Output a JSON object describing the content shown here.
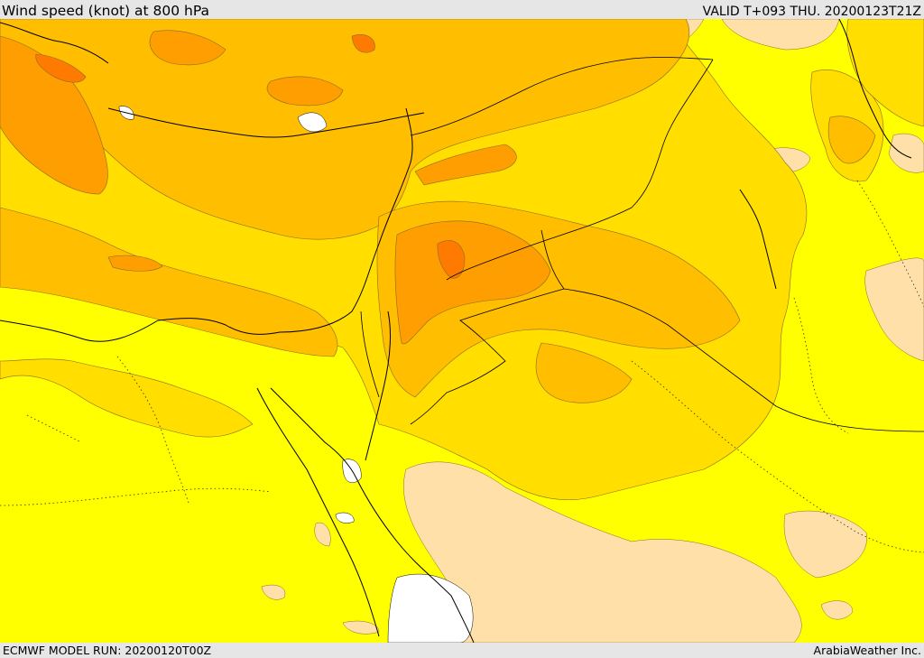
{
  "header": {
    "title": "Wind speed (knot) at 800 hPa",
    "valid_time": "VALID T+093 THU. 20200123T21Z"
  },
  "footer": {
    "model_run": "ECMWF MODEL RUN: 20200120T00Z",
    "credit": "ArabiaWeather Inc."
  },
  "colors": {
    "background_low": "#ffff00",
    "band_light": "#ffde00",
    "band_mid": "#ffbe00",
    "band_high": "#ff9e00",
    "band_peak": "#ff7a00",
    "calm": "#ffe0a8",
    "very_calm": "#ffffff",
    "lines": "#000000"
  }
}
